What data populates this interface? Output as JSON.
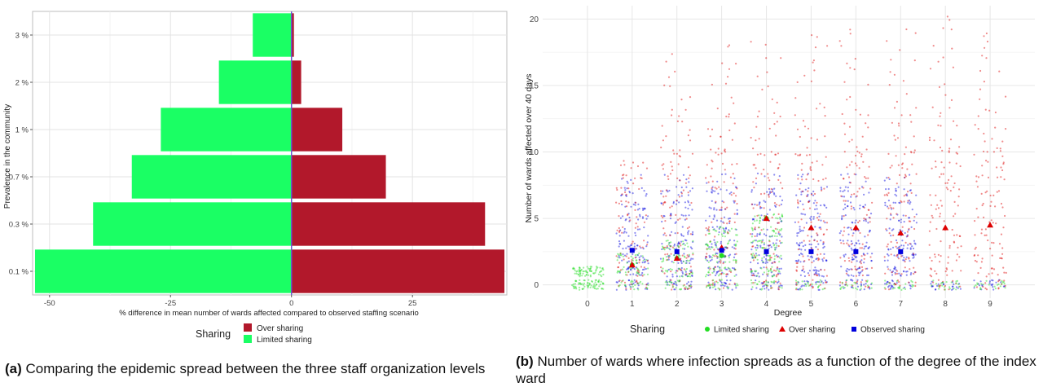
{
  "captions": {
    "a_label": "(a)",
    "a_text": "Comparing the epidemic spread between the three staff organization levels",
    "b_label": "(b)",
    "b_text": "Number of wards where infection spreads as a function of the degree of the index ward"
  },
  "chart_data": [
    {
      "type": "bar",
      "orientation": "horizontal",
      "categories": [
        "0.1 %",
        "0.3 %",
        "0.7 %",
        "1 %",
        "2 %",
        "3 %"
      ],
      "series": [
        {
          "name": "Over sharing",
          "color": "#b2182b",
          "values": [
            44,
            40,
            19.5,
            10.5,
            2,
            0.5
          ]
        },
        {
          "name": "Limited sharing",
          "color": "#1aff64",
          "values": [
            -53,
            -41,
            -33,
            -27,
            -15,
            -8
          ]
        }
      ],
      "xlabel": "% difference in mean number of wards affected compared to observed staffing scenario",
      "ylabel": "Prevalence in the community",
      "xlim": [
        -53.5,
        44.5
      ],
      "xticks": [
        -50,
        -25,
        0,
        25
      ],
      "xtick_labels": [
        "-50",
        "-25",
        "0",
        "25"
      ],
      "zero_line_color": "#6a5acd",
      "legend_title": "Sharing",
      "legend_items": [
        "Over sharing",
        "Limited sharing"
      ],
      "legend_position": "bottom",
      "grid": true
    },
    {
      "type": "scatter",
      "xlabel": "Degree",
      "ylabel": "Number of wards affected over 40 days",
      "xlim": [
        -1,
        10
      ],
      "ylim": [
        -1,
        21
      ],
      "xticks": [
        0,
        1,
        2,
        3,
        4,
        5,
        6,
        7,
        8,
        9
      ],
      "yticks": [
        0,
        5,
        10,
        15,
        20
      ],
      "legend_title": "Sharing",
      "legend_position": "bottom",
      "grid": true,
      "series": [
        {
          "name": "Limited sharing",
          "color": "#22dd22",
          "marker": "circle",
          "max_wards": [
            1,
            2,
            3,
            4,
            5,
            0,
            0,
            0,
            0,
            0
          ],
          "means": {
            "x": [
              1,
              2,
              3,
              4
            ],
            "y": [
              1.5,
              2.0,
              2.2,
              5.0
            ]
          }
        },
        {
          "name": "Over sharing",
          "color": "#dd0000",
          "marker": "triangle",
          "max_wards": [
            0,
            9,
            17,
            18,
            18,
            19,
            19,
            19,
            20,
            19
          ],
          "means": {
            "x": [
              1,
              2,
              3,
              4,
              5,
              6,
              7,
              8,
              9
            ],
            "y": [
              1.5,
              2.0,
              2.8,
              5.0,
              4.3,
              4.3,
              3.9,
              4.3,
              4.5
            ]
          }
        },
        {
          "name": "Observed sharing",
          "color": "#0000dd",
          "marker": "square",
          "max_wards": [
            0,
            8,
            8,
            8,
            8,
            8,
            8,
            8,
            0,
            0
          ],
          "means": {
            "x": [
              1,
              2,
              3,
              4,
              5,
              6,
              7
            ],
            "y": [
              2.6,
              2.5,
              2.6,
              2.5,
              2.5,
              2.5,
              2.5
            ]
          }
        }
      ]
    }
  ]
}
